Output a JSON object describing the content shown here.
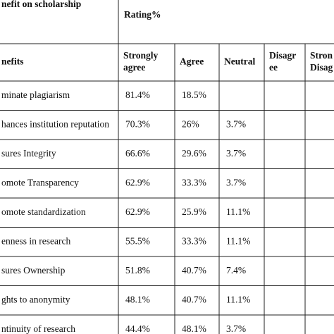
{
  "header": {
    "title": "nefit on scholarship",
    "rating": "Rating%"
  },
  "table": {
    "columns": [
      [
        "nefits"
      ],
      [
        "Strongly",
        "agree"
      ],
      [
        "Agree"
      ],
      [
        "Neutral"
      ],
      [
        "Disagr",
        "ee"
      ],
      [
        "Stron",
        "Disag"
      ]
    ],
    "rows": [
      [
        "minate plagiarism",
        "81.4%",
        "18.5%",
        null,
        null,
        null
      ],
      [
        "hances institution reputation",
        "70.3%",
        "26%",
        "3.7%",
        null,
        null
      ],
      [
        "sures Integrity",
        "66.6%",
        "29.6%",
        "3.7%",
        null,
        null
      ],
      [
        "omote Transparency",
        "62.9%",
        "33.3%",
        "3.7%",
        null,
        null
      ],
      [
        "omote standardization",
        "62.9%",
        "25.9%",
        "11.1%",
        null,
        null
      ],
      [
        "enness in research",
        "55.5%",
        "33.3%",
        "11.1%",
        null,
        null
      ],
      [
        "sures Ownership",
        "51.8%",
        "40.7%",
        "7.4%",
        null,
        null
      ],
      [
        "ghts to anonymity",
        "48.1%",
        "40.7%",
        "11.1%",
        null,
        null
      ],
      [
        "ntinuity of research",
        "44.4%",
        "48.1%",
        "3.7%",
        null,
        null
      ]
    ]
  }
}
